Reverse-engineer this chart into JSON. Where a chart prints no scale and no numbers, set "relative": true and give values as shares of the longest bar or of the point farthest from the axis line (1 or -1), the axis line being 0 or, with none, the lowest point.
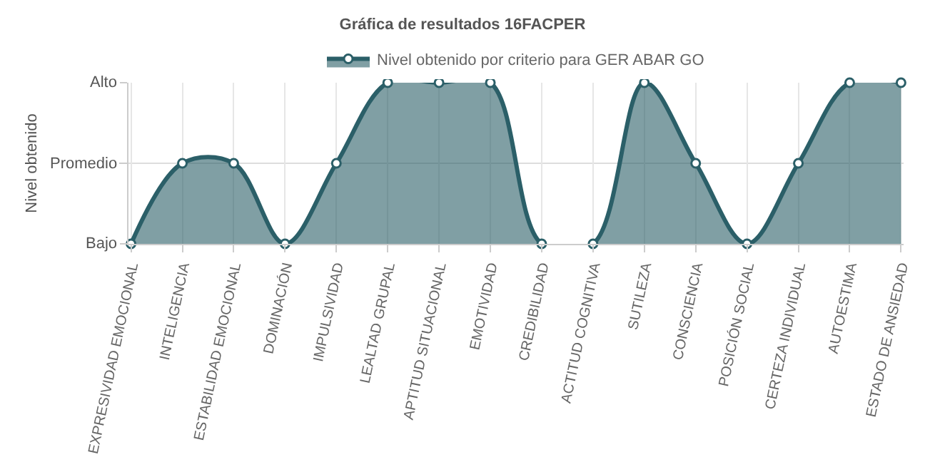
{
  "chart_data": {
    "type": "area",
    "title": "Gráfica de resultados 16FACPER",
    "ylabel": "Nivel obtenido",
    "categories": [
      "EXPRESIVIDAD EMOCIONAL",
      "INTELIGENCIA",
      "ESTABILIDAD EMOCIONAL",
      "DOMINACIÓN",
      "IMPULSIVIDAD",
      "LEALTAD GRUPAL",
      "APTITUD SITUACIONAL",
      "EMOTIVIDAD",
      "CREDIBILIDAD",
      "ACTITUD COGNITIVA",
      "SUTILEZA",
      "CONSCIENCIA",
      "POSICIÓN SOCIAL",
      "CERTEZA INDIVIDUAL",
      "AUTOESTIMA",
      "ESTADO DE ANSIEDAD"
    ],
    "series": [
      {
        "name": "Nivel obtenido por criterio para GER ABAR GO",
        "color": "#2b5f68",
        "values": [
          0,
          0.5,
          0.5,
          0,
          0.5,
          1,
          1,
          1,
          0,
          0,
          1,
          0.5,
          0,
          0.5,
          1,
          1
        ]
      }
    ],
    "relative": true,
    "annotations": [
      "Bajo",
      "Alto"
    ],
    "ref_lines": [
      {
        "axis": "y",
        "value": 0.5,
        "label": "Promedio",
        "color": "#dddddd",
        "line_style": "solid"
      }
    ],
    "grid": true,
    "legend": "top",
    "marker": "circle",
    "line_style": "solid"
  }
}
